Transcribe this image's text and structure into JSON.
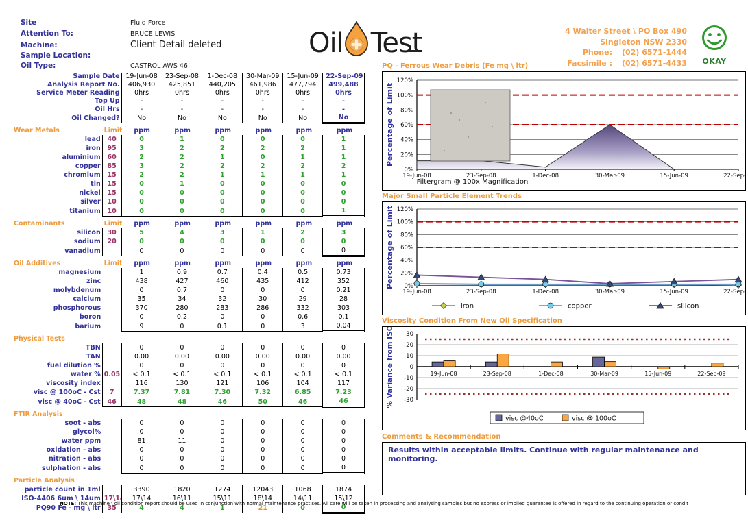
{
  "header": {
    "info": [
      {
        "label": "Site",
        "value": "Fluid Force"
      },
      {
        "label": "Attention To:",
        "value": "BRUCE LEWIS"
      },
      {
        "label": "Machine:",
        "value": "Client Detail deleted",
        "big": true
      },
      {
        "label": "Sample Location:",
        "value": ""
      },
      {
        "label": "Oil Type:",
        "value": "CASTROL AWS 46"
      }
    ],
    "logo_text_1": "Oil",
    "logo_text_2": "Test",
    "drop_icon_color": "#F5A13D",
    "address_line_1": "4 Walter Street \\ PO Box 490",
    "address_line_2": "Singleton NSW 2330",
    "phone_label": "Phone:",
    "phone_value": "(02) 6571-1444",
    "fax_label": "Facsimile :",
    "fax_value": "(02) 6571-4433",
    "status_label": "OKAY",
    "status_color": "#2E8B2E"
  },
  "table": {
    "columns": [
      "19-Jun-08",
      "23-Sep-08",
      "1-Dec-08",
      "30-Mar-09",
      "15-Jun-09",
      "22-Sep-09"
    ],
    "limit_header": "Limit",
    "unit_label": "ppm",
    "info_rows": [
      {
        "label": "Sample Date",
        "values": [
          "19-Jun-08",
          "23-Sep-08",
          "1-Dec-08",
          "30-Mar-09",
          "15-Jun-09",
          "22-Sep-09"
        ]
      },
      {
        "label": "Analysis Report No.",
        "values": [
          "406,930",
          "425,851",
          "440,205",
          "461,986",
          "477,794",
          "499,488"
        ]
      },
      {
        "label": "Service Meter Reading",
        "values": [
          "0hrs",
          "0hrs",
          "0hrs",
          "0hrs",
          "0hrs",
          "0hrs"
        ]
      },
      {
        "label": "Top Up",
        "values": [
          "-",
          "-",
          "-",
          "-",
          "-",
          "-"
        ]
      },
      {
        "label": "Oil Hrs",
        "values": [
          "-",
          "-",
          "-",
          "-",
          "-",
          "-"
        ]
      },
      {
        "label": "Oil Changed?",
        "values": [
          "No",
          "No",
          "No",
          "No",
          "No",
          "No"
        ]
      }
    ],
    "sections": [
      {
        "name": "Wear Metals",
        "units": true,
        "boxed_limits": true,
        "rows": [
          {
            "label": "lead",
            "limit": "40",
            "cls": "green",
            "values": [
              "0",
              "1",
              "0",
              "0",
              "0",
              "1"
            ]
          },
          {
            "label": "iron",
            "limit": "95",
            "cls": "green",
            "values": [
              "3",
              "2",
              "2",
              "2",
              "2",
              "1"
            ]
          },
          {
            "label": "aluminium",
            "limit": "60",
            "cls": "green",
            "values": [
              "2",
              "2",
              "1",
              "0",
              "1",
              "1"
            ]
          },
          {
            "label": "copper",
            "limit": "85",
            "cls": "green",
            "values": [
              "3",
              "2",
              "2",
              "2",
              "2",
              "2"
            ]
          },
          {
            "label": "chromium",
            "limit": "15",
            "cls": "green",
            "values": [
              "2",
              "2",
              "1",
              "1",
              "1",
              "1"
            ]
          },
          {
            "label": "tin",
            "limit": "15",
            "cls": "green",
            "values": [
              "0",
              "1",
              "0",
              "0",
              "0",
              "0"
            ]
          },
          {
            "label": "nickel",
            "limit": "15",
            "cls": "green",
            "values": [
              "0",
              "0",
              "0",
              "0",
              "0",
              "0"
            ]
          },
          {
            "label": "silver",
            "limit": "10",
            "cls": "green",
            "values": [
              "0",
              "0",
              "0",
              "0",
              "0",
              "0"
            ]
          },
          {
            "label": "titanium",
            "limit": "10",
            "cls": "green",
            "values": [
              "0",
              "0",
              "0",
              "0",
              "0",
              "1"
            ]
          }
        ]
      },
      {
        "name": "Contaminants",
        "units": true,
        "boxed_limits": true,
        "rows": [
          {
            "label": "silicon",
            "limit": "30",
            "cls": "green",
            "values": [
              "5",
              "4",
              "3",
              "1",
              "2",
              "3"
            ]
          },
          {
            "label": "sodium",
            "limit": "20",
            "cls": "green",
            "values": [
              "0",
              "0",
              "0",
              "0",
              "0",
              "0"
            ]
          },
          {
            "label": "vanadium",
            "limit": "",
            "cls": "blk",
            "values": [
              "0",
              "0",
              "0",
              "0",
              "0",
              "0"
            ]
          }
        ]
      },
      {
        "name": "Oil Additives",
        "units": true,
        "boxed_limits": false,
        "rows": [
          {
            "label": "magnesium",
            "limit": "",
            "cls": "blk",
            "values": [
              "1",
              "0.9",
              "0.7",
              "0.4",
              "0.5",
              "0.73"
            ]
          },
          {
            "label": "zinc",
            "limit": "",
            "cls": "blk",
            "values": [
              "438",
              "427",
              "460",
              "435",
              "412",
              "352"
            ]
          },
          {
            "label": "molybdenum",
            "limit": "",
            "cls": "blk",
            "values": [
              "0",
              "0.7",
              "0",
              "0",
              "0",
              "0.21"
            ]
          },
          {
            "label": "calcium",
            "limit": "",
            "cls": "blk",
            "values": [
              "35",
              "34",
              "32",
              "30",
              "29",
              "28"
            ]
          },
          {
            "label": "phosphorous",
            "limit": "",
            "cls": "blk",
            "values": [
              "370",
              "280",
              "283",
              "286",
              "332",
              "303"
            ]
          },
          {
            "label": "boron",
            "limit": "",
            "cls": "blk",
            "values": [
              "0",
              "0.2",
              "0",
              "0",
              "0.6",
              "0.1"
            ]
          },
          {
            "label": "barium",
            "limit": "",
            "cls": "blk",
            "values": [
              "9",
              "0",
              "0.1",
              "0",
              "3",
              "0.04"
            ]
          }
        ]
      },
      {
        "name": "Physical Tests",
        "units": false,
        "boxed_limits": true,
        "rows": [
          {
            "label": "TBN",
            "limit": "",
            "cls": "blk",
            "values": [
              "0",
              "0",
              "0",
              "0",
              "0",
              "0"
            ]
          },
          {
            "label": "TAN",
            "limit": "",
            "cls": "blk",
            "values": [
              "0.00",
              "0.00",
              "0.00",
              "0.00",
              "0.00",
              "0.00"
            ]
          },
          {
            "label": "fuel dilution %",
            "limit": "",
            "cls": "blk",
            "values": [
              "0",
              "0",
              "0",
              "0",
              "0",
              "0"
            ]
          },
          {
            "label": "water %",
            "limit": "0.05",
            "cls": "blk",
            "values": [
              "< 0.1",
              "< 0.1",
              "< 0.1",
              "< 0.1",
              "< 0.1",
              "< 0.1"
            ]
          },
          {
            "label": "viscosity index",
            "limit": "",
            "cls": "blk",
            "values": [
              "116",
              "130",
              "121",
              "106",
              "104",
              "117"
            ]
          },
          {
            "label": "visc @ 100oC - Cst",
            "limit": "7",
            "cls": "green",
            "values": [
              "7.37",
              "7.81",
              "7.30",
              "7.32",
              "6.85",
              "7.23"
            ]
          },
          {
            "label": "visc @ 40oC - Cst",
            "limit": "46",
            "cls": "green",
            "values": [
              "48",
              "48",
              "46",
              "50",
              "46",
              "46"
            ]
          }
        ]
      },
      {
        "name": "FTIR Analysis",
        "units": false,
        "boxed_limits": false,
        "rows": [
          {
            "label": "soot - abs",
            "limit": "",
            "cls": "blk",
            "values": [
              "0",
              "0",
              "0",
              "0",
              "0",
              "0"
            ]
          },
          {
            "label": "glycol%",
            "limit": "",
            "cls": "blk",
            "values": [
              "0",
              "0",
              "0",
              "0",
              "0",
              "0"
            ]
          },
          {
            "label": "water ppm",
            "limit": "",
            "cls": "blk",
            "values": [
              "81",
              "11",
              "0",
              "0",
              "0",
              "0"
            ]
          },
          {
            "label": "oxidation - abs",
            "limit": "",
            "cls": "blk",
            "values": [
              "0",
              "0",
              "0",
              "0",
              "0",
              "0"
            ]
          },
          {
            "label": "nitration - abs",
            "limit": "",
            "cls": "blk",
            "values": [
              "0",
              "0",
              "0",
              "0",
              "0",
              "0"
            ]
          },
          {
            "label": "sulphation - abs",
            "limit": "",
            "cls": "blk",
            "values": [
              "0",
              "0",
              "0",
              "0",
              "0",
              "0"
            ]
          }
        ]
      },
      {
        "name": "Particle Analysis",
        "units": false,
        "boxed_limits": true,
        "rows": [
          {
            "label": "particle count in 1ml",
            "limit": "",
            "cls": "blk",
            "values": [
              "3390",
              "1820",
              "1274",
              "12043",
              "1068",
              "1874"
            ]
          },
          {
            "label": "ISO-4406 6um \\ 14um",
            "limit": "17\\14",
            "cls": "blk",
            "values": [
              "17\\14",
              "16\\11",
              "15\\11",
              "18\\14",
              "14\\11",
              "15\\12"
            ]
          },
          {
            "label": "PQ90 Fe - mg \\ ltr",
            "limit": "35",
            "cls": "green",
            "cell_cls": [
              "green",
              "green",
              "green",
              "orange",
              "green",
              "green"
            ],
            "values": [
              "4",
              "4",
              "1",
              "21",
              "0",
              "0"
            ]
          }
        ]
      }
    ]
  },
  "chart_data": [
    {
      "type": "area",
      "title": "PQ - Ferrous Wear Debris (Fe mg \\ ltr)",
      "ylabel": "Percentage of Limit",
      "x": [
        "19-Jun-08",
        "23-Sep-08",
        "1-Dec-08",
        "30-Mar-09",
        "15-Jun-09",
        "22-Sep-09"
      ],
      "ylim": [
        0,
        120
      ],
      "yticks": [
        0,
        20,
        40,
        60,
        80,
        100,
        120
      ],
      "ytick_suffix": "%",
      "limit_lines": [
        60,
        100
      ],
      "values": [
        11.4,
        11.4,
        2.9,
        60,
        0,
        0
      ],
      "fill_top_color": "#55477E",
      "inset_label": "Filtergram @ 100x Magnification"
    },
    {
      "type": "line",
      "title": "Major Small Particle Element Trends",
      "ylabel": "Percentage of Limit",
      "x": [
        "19-Jun-08",
        "23-Sep-08",
        "1-Dec-08",
        "30-Mar-09",
        "15-Jun-09",
        "22-Sep-09"
      ],
      "ylim": [
        0,
        120
      ],
      "yticks": [
        0,
        20,
        40,
        60,
        80,
        100,
        120
      ],
      "ytick_suffix": "%",
      "limit_lines": [
        60,
        100
      ],
      "legend_position": "bottom",
      "series": [
        {
          "name": "iron",
          "marker": "diamond",
          "line_color": "#8C8CB0",
          "fill_color": "#C6CE4B",
          "values": [
            3.2,
            2.1,
            2.1,
            2.1,
            2.1,
            1.1
          ]
        },
        {
          "name": "copper",
          "marker": "circle",
          "line_color": "#55A9D6",
          "fill_color": "#72CDEA",
          "values": [
            3.5,
            2.4,
            2.4,
            2.4,
            2.4,
            2.4
          ]
        },
        {
          "name": "silicon",
          "marker": "triangle",
          "line_color": "#7A5298",
          "fill_color": "#31497F",
          "values": [
            16.7,
            13.3,
            10,
            3.3,
            6.7,
            10
          ]
        }
      ]
    },
    {
      "type": "bar",
      "title": "Viscosity Condition From New Oil Specification",
      "ylabel": "% Variance from ISO",
      "x": [
        "19-Jun-08",
        "23-Sep-08",
        "1-Dec-08",
        "30-Mar-09",
        "15-Jun-09",
        "22-Sep-09"
      ],
      "ylim": [
        -30,
        30
      ],
      "yticks": [
        -30,
        -20,
        -10,
        0,
        10,
        20,
        30
      ],
      "limit_lines": [
        -25,
        25
      ],
      "legend_position": "bottom",
      "series": [
        {
          "name": "visc @40oC",
          "color": "#666699",
          "values": [
            4.3,
            4.3,
            0,
            8.7,
            0,
            0
          ]
        },
        {
          "name": "visc @ 100oC",
          "color": "#FAA743",
          "values": [
            5.3,
            11.6,
            4.3,
            4.6,
            -2.1,
            3.3
          ]
        }
      ]
    }
  ],
  "comments": {
    "title": "Comments & Recommendation",
    "text": "Results within acceptable limits. Continue with regular maintenance and monitoring."
  },
  "footer_note": {
    "prefix": "NOTE:",
    "text": " This machine \\ oil condition report should be used in conjunction with normal maintenance practises. All care will be taken in processing and analysing samples but no express or implied guarantee is offered in regard to the continuing operation or condit"
  }
}
